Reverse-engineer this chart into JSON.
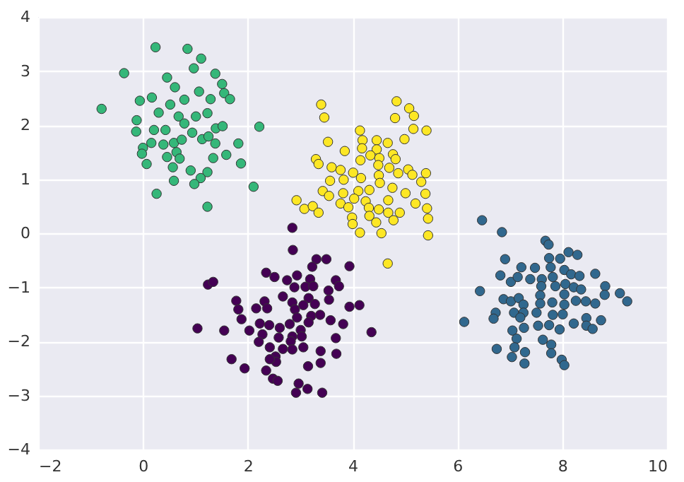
{
  "chart_data": {
    "type": "scatter",
    "xlim": [
      -2,
      10
    ],
    "ylim": [
      -4,
      4
    ],
    "xticks": [
      -2,
      0,
      2,
      4,
      6,
      8,
      10
    ],
    "yticks": [
      -4,
      -3,
      -2,
      -1,
      0,
      1,
      2,
      3,
      4
    ],
    "grid": true,
    "marker": "circle",
    "series": [
      {
        "color": "#35b779",
        "x": [
          0.24,
          0.85,
          1.11,
          0.97,
          -0.36,
          0.46,
          1.38,
          1.51,
          1.55,
          1.66,
          -0.79,
          -0.06,
          0.17,
          0.61,
          1.07,
          1.29,
          0.79,
          0.52,
          0.3,
          0.68,
          1.01,
          1.23,
          -0.12,
          -0.13,
          0.21,
          0.43,
          0.79,
          0.94,
          1.39,
          1.52,
          2.22,
          0.16,
          0,
          -0.02,
          0.39,
          0.59,
          0.74,
          1.13,
          1.25,
          1.38,
          1.82,
          1.59,
          1.34,
          0.64,
          0.46,
          0.7,
          0.57,
          0.07,
          0.91,
          1.23,
          1.1,
          1.87,
          0.59,
          0.98,
          2.11,
          0.26,
          1.23
        ],
        "values": [
          3.44,
          3.41,
          3.23,
          3.05,
          2.96,
          2.88,
          2.95,
          2.76,
          2.59,
          2.48,
          2.3,
          2.45,
          2.51,
          2.7,
          2.62,
          2.48,
          2.47,
          2.38,
          2.23,
          2.16,
          2.16,
          2.22,
          2.09,
          1.88,
          1.91,
          1.91,
          2.03,
          1.86,
          1.94,
          1.98,
          1.97,
          1.67,
          1.58,
          1.47,
          1.64,
          1.67,
          1.73,
          1.74,
          1.79,
          1.66,
          1.66,
          1.45,
          1.39,
          1.5,
          1.41,
          1.38,
          1.22,
          1.28,
          1.16,
          1.13,
          1.02,
          1.29,
          0.97,
          0.91,
          0.86,
          0.73,
          0.49
        ]
      },
      {
        "color": "#fde725",
        "x": [
          3.4,
          3.46,
          4.84,
          4.81,
          5.08,
          5.17,
          5.16,
          5.41,
          4.99,
          4.14,
          3.53,
          4.19,
          4.46,
          4.67,
          3.85,
          4.18,
          4.46,
          4.34,
          4.77,
          4.82,
          3.3,
          3.35,
          4.15,
          4.51,
          3.6,
          3.77,
          4.01,
          4.49,
          4.7,
          4.87,
          5.06,
          5.14,
          5.31,
          5.4,
          3.57,
          3.83,
          4.16,
          4.5,
          4.52,
          4.76,
          5.01,
          5.39,
          3.43,
          3.55,
          3.82,
          4.11,
          4.32,
          4.03,
          4.25,
          4.68,
          5.2,
          2.93,
          3.08,
          3.24,
          3.35,
          3.77,
          3.92,
          4.31,
          4.5,
          4.68,
          4.9,
          5.42,
          3.99,
          4.32,
          4.78,
          5.44,
          4.0,
          4.45,
          4.55,
          4.14,
          5.44,
          4.67
        ],
        "values": [
          2.38,
          2.14,
          2.44,
          2.13,
          2.31,
          2.17,
          1.93,
          1.9,
          1.74,
          1.9,
          1.69,
          1.72,
          1.72,
          1.67,
          1.52,
          1.57,
          1.55,
          1.44,
          1.46,
          1.37,
          1.37,
          1.28,
          1.35,
          1.39,
          1.22,
          1.17,
          1.12,
          1.26,
          1.21,
          1.11,
          1.18,
          1.08,
          0.95,
          1.11,
          0.97,
          0.99,
          1.02,
          1.07,
          0.93,
          0.84,
          0.74,
          0.73,
          0.78,
          0.69,
          0.74,
          0.78,
          0.8,
          0.64,
          0.59,
          0.61,
          0.55,
          0.61,
          0.45,
          0.5,
          0.38,
          0.55,
          0.48,
          0.47,
          0.44,
          0.38,
          0.38,
          0.46,
          0.29,
          0.32,
          0.24,
          0.27,
          0.17,
          0.2,
          0.0,
          0.01,
          -0.04,
          -0.56
        ]
      },
      {
        "color": "#440154",
        "x": [
          2.85,
          2.86,
          3.31,
          3.5,
          3.23,
          3.94,
          2.35,
          2.51,
          2.94,
          2.75,
          3.19,
          3.68,
          1.24,
          1.34,
          2.89,
          3.1,
          3.25,
          3.74,
          3.54,
          2.67,
          1.78,
          2.32,
          2.85,
          3.16,
          3.55,
          1.82,
          2.16,
          2.37,
          2.9,
          3.06,
          3.28,
          3.94,
          4.13,
          1.88,
          2.94,
          3.21,
          3.38,
          3.58,
          3.82,
          1.04,
          1.55,
          2.03,
          2.23,
          2.41,
          2.61,
          2.8,
          3.01,
          3.16,
          4.36,
          2.28,
          2.59,
          2.85,
          3.03,
          3.68,
          2.21,
          2.42,
          2.67,
          2.82,
          3.06,
          2.85,
          3.39,
          3.69,
          1.69,
          2.53,
          2.54,
          2.42,
          3.39,
          3.15,
          1.94,
          2.35,
          2.48,
          2.57,
          2.97,
          3.14,
          2.92,
          3.42
        ],
        "values": [
          0.1,
          -0.31,
          -0.48,
          -0.48,
          -0.62,
          -0.61,
          -0.73,
          -0.81,
          -0.78,
          -0.87,
          -0.85,
          -0.87,
          -0.95,
          -0.9,
          -1.0,
          -0.99,
          -0.98,
          -0.98,
          -1.06,
          -1.17,
          -1.25,
          -1.26,
          -1.28,
          -1.2,
          -1.23,
          -1.41,
          -1.39,
          -1.39,
          -1.41,
          -1.33,
          -1.31,
          -1.36,
          -1.33,
          -1.59,
          -1.56,
          -1.53,
          -1.51,
          -1.61,
          -1.68,
          -1.76,
          -1.8,
          -1.8,
          -1.67,
          -1.7,
          -1.75,
          -1.68,
          -1.79,
          -1.65,
          -1.83,
          -1.87,
          -1.93,
          -1.91,
          -1.91,
          -1.94,
          -2.01,
          -2.11,
          -2.14,
          -2.0,
          -2.11,
          -2.15,
          -2.18,
          -2.23,
          -2.33,
          -2.28,
          -2.38,
          -2.33,
          -2.4,
          -2.46,
          -2.5,
          -2.54,
          -2.69,
          -2.73,
          -2.78,
          -2.88,
          -2.95,
          -2.95
        ]
      },
      {
        "color": "#31688e",
        "x": [
          6.47,
          6.85,
          7.68,
          7.74,
          8.12,
          8.29,
          7.96,
          7.75,
          6.91,
          7.22,
          7.48,
          7.78,
          8.04,
          8.63,
          6.82,
          7.02,
          7.15,
          7.39,
          7.61,
          7.82,
          8.17,
          8.33,
          6.43,
          7.6,
          7.87,
          8.06,
          8.22,
          8.36,
          8.82,
          8.81,
          9.1,
          9.24,
          6.88,
          7.02,
          7.17,
          7.58,
          8.04,
          8.26,
          8.45,
          8.63,
          7.26,
          7.58,
          7.81,
          8.04,
          6.73,
          6.69,
          7.08,
          7.26,
          7.51,
          7.82,
          8.01,
          7.2,
          8.46,
          8.74,
          6.13,
          7.54,
          7.75,
          7.95,
          8.22,
          8.46,
          8.58,
          7.27,
          7.05,
          7.13,
          7.09,
          6.75,
          7.63,
          7.79,
          7.29,
          7.79,
          7.04,
          7.28,
          7.99,
          8.04
        ],
        "values": [
          0.24,
          0.02,
          -0.14,
          -0.21,
          -0.35,
          -0.4,
          -0.47,
          -0.46,
          -0.48,
          -0.63,
          -0.64,
          -0.63,
          -0.68,
          -0.75,
          -0.78,
          -0.9,
          -0.81,
          -0.85,
          -0.85,
          -0.81,
          -0.76,
          -0.79,
          -1.07,
          -0.98,
          -0.98,
          -0.94,
          -1.0,
          -1.04,
          -0.98,
          -1.14,
          -1.11,
          -1.26,
          -1.22,
          -1.26,
          -1.2,
          -1.15,
          -1.13,
          -1.25,
          -1.26,
          -1.3,
          -1.32,
          -1.3,
          -1.28,
          -1.32,
          -1.47,
          -1.58,
          -1.47,
          -1.47,
          -1.47,
          -1.51,
          -1.5,
          -1.56,
          -1.57,
          -1.61,
          -1.64,
          -1.71,
          -1.7,
          -1.78,
          -1.67,
          -1.71,
          -1.77,
          -1.75,
          -1.8,
          -1.95,
          -2.11,
          -2.14,
          -1.97,
          -2.06,
          -2.2,
          -2.22,
          -2.29,
          -2.41,
          -2.34,
          -2.44
        ]
      }
    ]
  }
}
